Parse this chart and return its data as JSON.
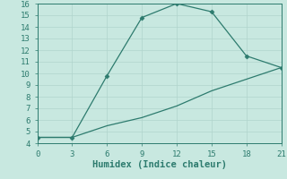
{
  "line1_x": [
    0,
    3,
    6,
    9,
    12,
    15,
    18,
    21
  ],
  "line1_y": [
    4.5,
    4.5,
    9.8,
    14.8,
    16.0,
    15.3,
    11.5,
    10.5
  ],
  "line2_x": [
    0,
    3,
    6,
    9,
    12,
    15,
    18,
    21
  ],
  "line2_y": [
    4.5,
    4.5,
    5.5,
    6.2,
    7.2,
    8.5,
    9.5,
    10.5
  ],
  "line_color": "#2d7b6e",
  "bg_color": "#c8e8e0",
  "grid_color": "#b0d4cc",
  "xlabel": "Humidex (Indice chaleur)",
  "xlim": [
    0,
    21
  ],
  "ylim": [
    4,
    16
  ],
  "xticks": [
    0,
    3,
    6,
    9,
    12,
    15,
    18,
    21
  ],
  "yticks": [
    4,
    5,
    6,
    7,
    8,
    9,
    10,
    11,
    12,
    13,
    14,
    15,
    16
  ],
  "marker": "D",
  "marker_size": 2.5,
  "linewidth": 0.9,
  "xlabel_fontsize": 7.5,
  "tick_fontsize": 6.5
}
